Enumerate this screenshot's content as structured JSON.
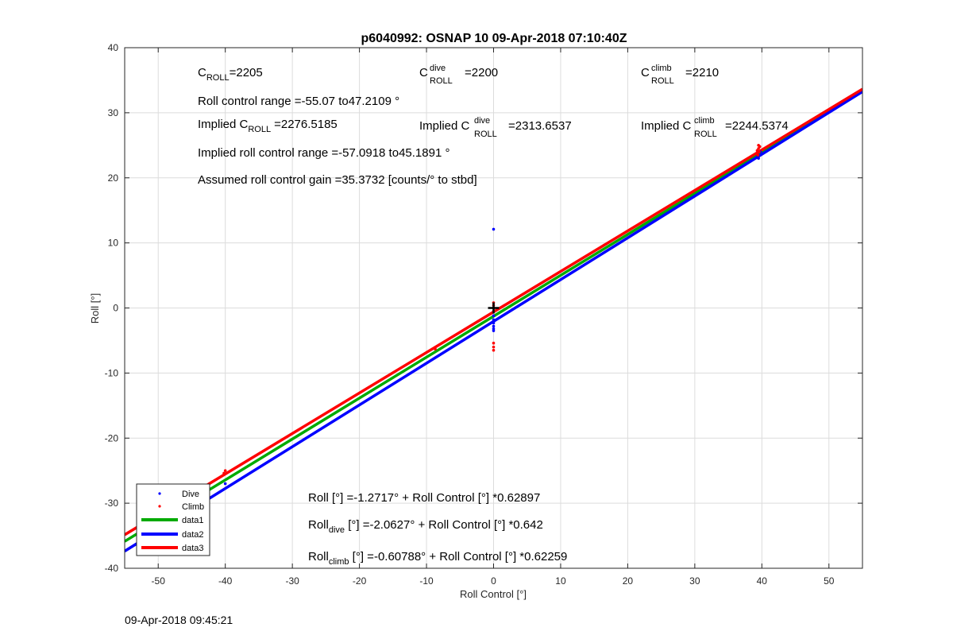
{
  "title": "p6040992: OSNAP 10 09-Apr-2018 07:10:40Z",
  "footer_timestamp": "09-Apr-2018 09:45:21",
  "annotations": {
    "c_roll": {
      "base": "C",
      "sub": "ROLL",
      "value": "=2205"
    },
    "c_roll_dive": {
      "base": "C",
      "sup": "dive",
      "sub": "ROLL",
      "value": "=2200"
    },
    "c_roll_climb": {
      "base": "C",
      "sup": "climb",
      "sub": "ROLL",
      "value": "=2210"
    },
    "roll_control_range": "Roll control range =-55.07 to47.2109 °",
    "implied_c_roll": {
      "prefix": "Implied C",
      "sub": "ROLL",
      "value": "=2276.5185"
    },
    "implied_c_roll_dive": {
      "prefix": "Implied C",
      "sup": "dive",
      "sub": "ROLL",
      "value": "=2313.6537"
    },
    "implied_c_roll_climb": {
      "prefix": "Implied C",
      "sup": "climb",
      "sub": "ROLL",
      "value": "=2244.5374"
    },
    "implied_range": "Implied roll control range =-57.0918 to45.1891 °",
    "gain": "Assumed roll control gain =35.3732 [counts/° to stbd]",
    "fit_all": {
      "prefix": "Roll",
      "sub": "",
      "text": " [°] =-1.2717° + Roll Control [°] *0.62897"
    },
    "fit_dive": {
      "prefix": "Roll",
      "sub": "dive",
      "text": " [°] =-2.0627° + Roll Control [°] *0.642"
    },
    "fit_climb": {
      "prefix": "Roll",
      "sub": "climb",
      "text": " [°] =-0.60788° + Roll Control [°] *0.62259"
    }
  },
  "chart_data": {
    "type": "scatter",
    "xlabel": "Roll Control [°]",
    "ylabel": "Roll [°]",
    "xlim": [
      -55,
      55
    ],
    "ylim": [
      -40,
      40
    ],
    "xticks": [
      -50,
      -40,
      -30,
      -20,
      -10,
      0,
      10,
      20,
      30,
      40,
      50
    ],
    "yticks": [
      -40,
      -30,
      -20,
      -10,
      0,
      10,
      20,
      30,
      40
    ],
    "grid": true,
    "box": true,
    "legend_position": "bottom-left",
    "colors": {
      "dive": "#0000ff",
      "climb": "#ff0000",
      "data1": "#00aa00",
      "data2": "#0000ff",
      "data3": "#ff0000",
      "marker": "#000000"
    },
    "series": [
      {
        "name": "Dive",
        "kind": "points",
        "color": "#0000ff",
        "x": [
          0,
          0,
          0,
          0,
          0,
          0,
          0,
          0,
          -40,
          39.5,
          39.5,
          39.8,
          39.3
        ],
        "y": [
          12.1,
          -0.5,
          -1.2,
          -1.8,
          -2.3,
          -2.8,
          -3.2,
          -3.5,
          -27.0,
          23.0,
          23.5,
          24.0,
          23.2
        ]
      },
      {
        "name": "Climb",
        "kind": "points",
        "color": "#ff0000",
        "x": [
          0,
          0,
          0,
          0,
          0,
          0,
          0,
          -40,
          -40.2,
          -8.7,
          39.4,
          39.6,
          39.5,
          39.7,
          39.3,
          39.5
        ],
        "y": [
          0.8,
          0.4,
          0.0,
          -0.5,
          -5.4,
          -6.0,
          -6.5,
          -25.0,
          -25.4,
          -6.3,
          23.5,
          24.0,
          24.5,
          24.8,
          24.2,
          25.0
        ]
      },
      {
        "name": "data1",
        "kind": "line",
        "color": "#00aa00",
        "intercept": -1.2717,
        "slope": 0.62897
      },
      {
        "name": "data2",
        "kind": "line",
        "color": "#0000ff",
        "intercept": -2.0627,
        "slope": 0.642
      },
      {
        "name": "data3",
        "kind": "line",
        "color": "#ff0000",
        "intercept": -0.60788,
        "slope": 0.62259
      }
    ],
    "marker_point": {
      "x": 0,
      "y": 0,
      "symbol": "+",
      "color": "#000000"
    }
  }
}
